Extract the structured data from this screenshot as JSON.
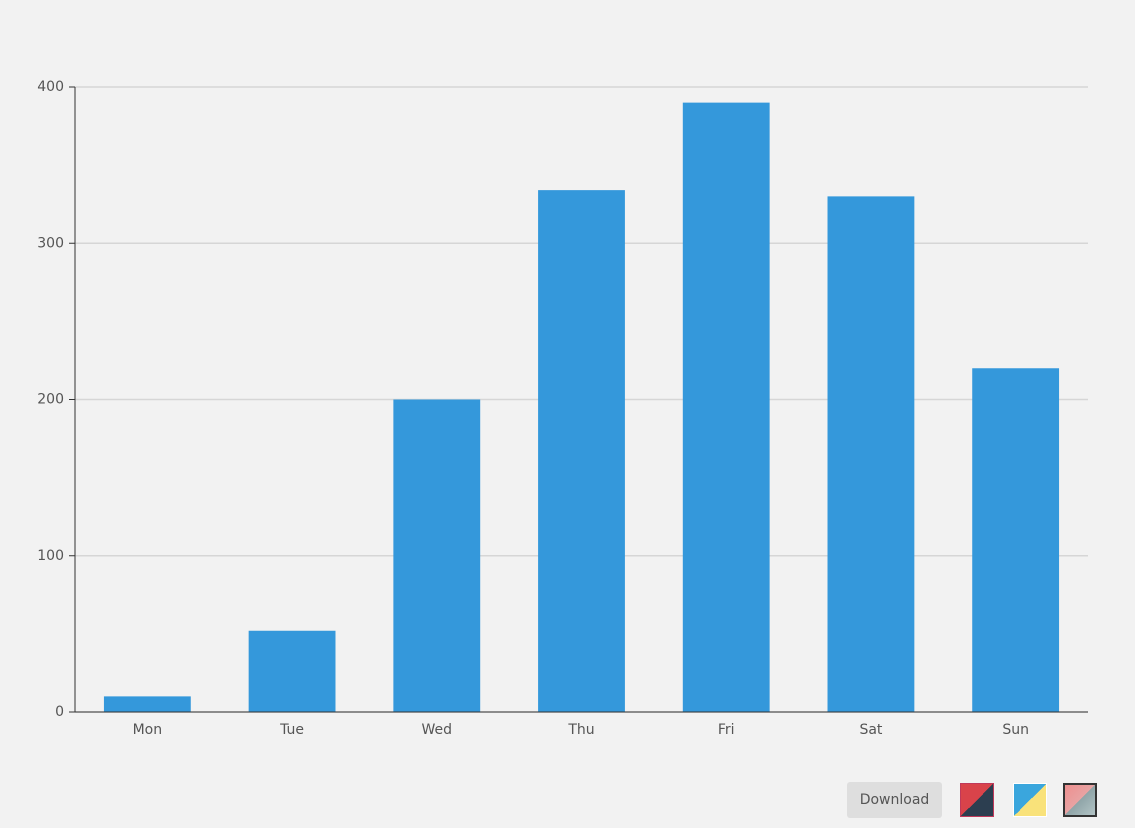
{
  "chart_data": {
    "type": "bar",
    "categories": [
      "Mon",
      "Tue",
      "Wed",
      "Thu",
      "Fri",
      "Sat",
      "Sun"
    ],
    "values": [
      10,
      52,
      200,
      334,
      390,
      330,
      220
    ],
    "color": "#3498db",
    "ylim": [
      0,
      400
    ],
    "yticks": [
      0,
      100,
      200,
      300,
      400
    ],
    "grid": true
  },
  "toolbar": {
    "download": "Download"
  }
}
